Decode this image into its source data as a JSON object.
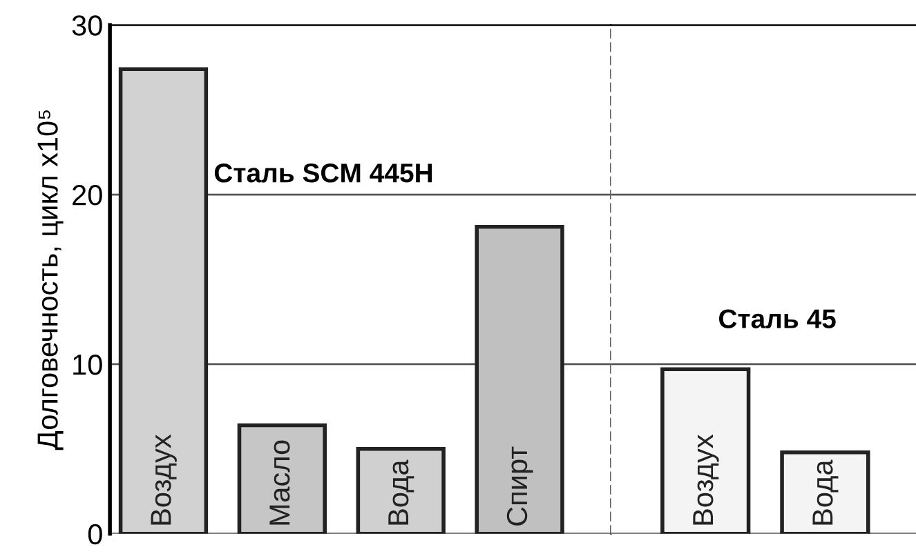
{
  "chart_data": [
    {
      "type": "bar",
      "ylabel": "Долговечность, цикл x10⁵",
      "categories": [
        "Воздух",
        "Масло",
        "Вода",
        "Спирт"
      ],
      "values": [
        27.4,
        6.4,
        5.0,
        18.1
      ],
      "colors": [
        "#d2d2d2",
        "#c6c6c6",
        "#d0d0d0",
        "#c0c0c0"
      ],
      "ylim": [
        0,
        30
      ],
      "yticks": [
        0,
        10,
        20,
        30
      ],
      "grid": "y",
      "annotations": [
        "Сталь SCM 445H"
      ]
    },
    {
      "type": "bar",
      "categories": [
        "Воздух",
        "Вода"
      ],
      "values": [
        9.7,
        4.8
      ],
      "colors": [
        "#f4f4f4",
        "#f4f4f4"
      ],
      "ylim": [
        0,
        30
      ],
      "yticks": [
        0,
        10,
        20,
        30
      ],
      "grid": "y",
      "tick_labels": false,
      "annotations": [
        "Сталь 45"
      ]
    }
  ]
}
